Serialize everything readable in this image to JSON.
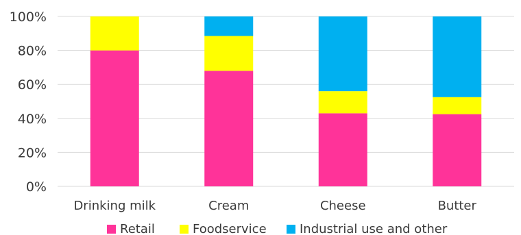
{
  "chart_data": {
    "type": "bar",
    "stacked": true,
    "categories": [
      "Drinking milk",
      "Cream",
      "Cheese",
      "Butter"
    ],
    "series": [
      {
        "name": "Retail",
        "color": "#ff3399",
        "values": [
          80,
          68,
          43,
          42.5
        ]
      },
      {
        "name": "Foodservice",
        "color": "#ffff00",
        "values": [
          20,
          20.5,
          13,
          10
        ]
      },
      {
        "name": "Industrial use and other",
        "color": "#00b0f0",
        "values": [
          0,
          11.5,
          44,
          47.5
        ]
      }
    ],
    "ylim": [
      0,
      100
    ],
    "yticks": [
      "0%",
      "20%",
      "40%",
      "60%",
      "80%",
      "100%"
    ],
    "ytick_values": [
      0,
      20,
      40,
      60,
      80,
      100
    ],
    "grid": true,
    "legend_position": "bottom"
  }
}
